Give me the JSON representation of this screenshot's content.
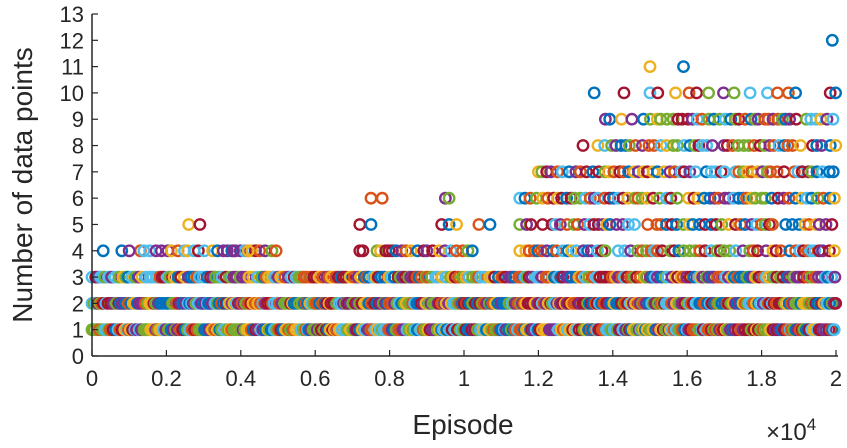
{
  "chart_data": {
    "type": "scatter",
    "title": "",
    "xlabel": "Episode",
    "ylabel": "Number of data points",
    "x_multiplier_base": "×10",
    "x_multiplier_exp": "4",
    "xlim": [
      0,
      20000
    ],
    "ylim": [
      0,
      13
    ],
    "xticks": [
      0,
      2000,
      4000,
      6000,
      8000,
      10000,
      12000,
      14000,
      16000,
      18000,
      20000
    ],
    "xtick_labels": [
      "0",
      "0.2",
      "0.4",
      "0.6",
      "0.8",
      "1",
      "1.2",
      "1.4",
      "1.6",
      "1.8",
      "2"
    ],
    "yticks": [
      0,
      1,
      2,
      3,
      4,
      5,
      6,
      7,
      8,
      9,
      10,
      11,
      12,
      13
    ],
    "ytick_labels": [
      "0",
      "1",
      "2",
      "3",
      "4",
      "5",
      "6",
      "7",
      "8",
      "9",
      "10",
      "11",
      "12",
      "13"
    ],
    "grid": false,
    "marker": "open-circle",
    "palette": [
      "#0072BD",
      "#D95319",
      "#EDB120",
      "#7E2F8E",
      "#77AC30",
      "#4DBEEE",
      "#A2142F"
    ],
    "series": [
      {
        "y": 1,
        "x_ranges": [
          [
            0,
            20000
          ]
        ],
        "density": "very-high"
      },
      {
        "y": 2,
        "x_ranges": [
          [
            0,
            20000
          ]
        ],
        "density": "very-high"
      },
      {
        "y": 3,
        "x_ranges": [
          [
            0,
            20000
          ]
        ],
        "density": "high"
      },
      {
        "y": 4,
        "x_ranges": [
          [
            1300,
            5000
          ],
          [
            7200,
            10500
          ],
          [
            11500,
            20000
          ]
        ],
        "density": "medium"
      },
      {
        "y": 5,
        "x_ranges": [
          [
            11500,
            20000
          ]
        ],
        "density": "medium"
      },
      {
        "y": 6,
        "x_ranges": [
          [
            11500,
            20000
          ]
        ],
        "density": "medium"
      },
      {
        "y": 7,
        "x_ranges": [
          [
            12000,
            20000
          ]
        ],
        "density": "medium"
      },
      {
        "y": 8,
        "x_ranges": [
          [
            13600,
            20000
          ]
        ],
        "density": "medium"
      },
      {
        "y": 9,
        "x_ranges": [
          [
            13800,
            20000
          ]
        ],
        "density": "medium"
      },
      {
        "y": 10,
        "x_ranges": [
          [
            15000,
            20000
          ]
        ],
        "density": "low"
      }
    ],
    "isolated_points": [
      {
        "x": 300,
        "y": 4
      },
      {
        "x": 800,
        "y": 4
      },
      {
        "x": 1000,
        "y": 4
      },
      {
        "x": 2600,
        "y": 5
      },
      {
        "x": 2900,
        "y": 5
      },
      {
        "x": 3800,
        "y": 4
      },
      {
        "x": 4200,
        "y": 4
      },
      {
        "x": 7200,
        "y": 5
      },
      {
        "x": 7500,
        "y": 5
      },
      {
        "x": 7500,
        "y": 6
      },
      {
        "x": 7800,
        "y": 6
      },
      {
        "x": 9400,
        "y": 5
      },
      {
        "x": 9600,
        "y": 5
      },
      {
        "x": 9800,
        "y": 5
      },
      {
        "x": 9500,
        "y": 6
      },
      {
        "x": 9600,
        "y": 6
      },
      {
        "x": 10400,
        "y": 5
      },
      {
        "x": 10700,
        "y": 5
      },
      {
        "x": 13200,
        "y": 8
      },
      {
        "x": 13500,
        "y": 10
      },
      {
        "x": 14300,
        "y": 10
      },
      {
        "x": 15000,
        "y": 11
      },
      {
        "x": 15900,
        "y": 11
      },
      {
        "x": 19900,
        "y": 12
      }
    ]
  }
}
